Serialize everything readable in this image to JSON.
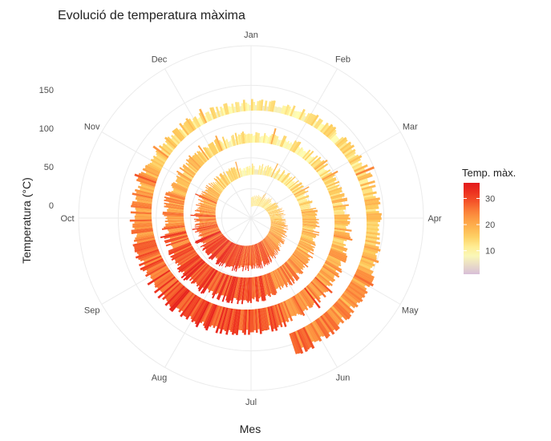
{
  "chart_data": {
    "type": "radial-bar",
    "title": "Evolució de temperatura màxima",
    "xlabel": "Mes",
    "ylabel": "Temperatura (°C)",
    "months": [
      "Jan",
      "Feb",
      "Mar",
      "Apr",
      "May",
      "Jun",
      "Jul",
      "Aug",
      "Sep",
      "Oct",
      "Nov",
      "Dec"
    ],
    "radial_ticks": [
      "0",
      "50",
      "100",
      "150"
    ],
    "radial_tick_values": [
      0,
      50,
      100,
      150
    ],
    "radial_range": [
      -40,
      175
    ],
    "legend": {
      "title": "Temp. màx.",
      "ticks": [
        "10",
        "20",
        "30"
      ],
      "tick_values": [
        10,
        20,
        30
      ],
      "range": [
        1,
        36
      ],
      "position": "right",
      "colors": [
        "#d8bfd8",
        "#ffffb2",
        "#fecc5c",
        "#fd8d3c",
        "#f03b20",
        "#e31a1c"
      ]
    },
    "series": {
      "name": "Temp. màx.",
      "description": "Daily maximum temperature, 3.5 years (Jan–mid Dec), bar length = temperature, base spirals outward by ~40 per year",
      "years": 3.45,
      "monthly_mean_max": [
        10,
        12,
        15,
        18,
        22,
        27,
        30,
        30,
        26,
        21,
        15,
        11
      ],
      "spiral_step_per_year": 40,
      "spiral_start": -26
    },
    "grid": true
  }
}
